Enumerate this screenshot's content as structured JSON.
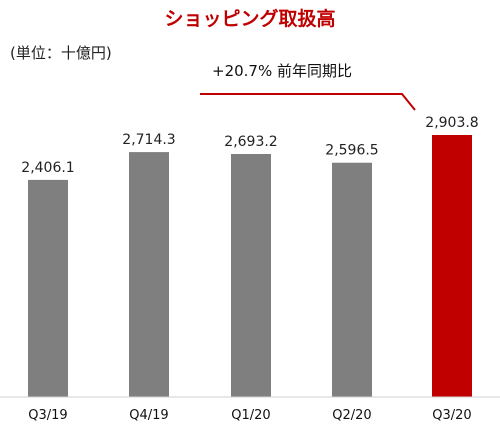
{
  "chart_data": {
    "type": "bar",
    "title": "ショッピング取扱高",
    "unit_label": "(単位：十億円)",
    "categories": [
      "Q3/19",
      "Q4/19",
      "Q1/20",
      "Q2/20",
      "Q3/20"
    ],
    "values": [
      2406.1,
      2714.3,
      2693.2,
      2596.5,
      2903.8
    ],
    "value_labels": [
      "2,406.1",
      "2,714.3",
      "2,693.2",
      "2,596.5",
      "2,903.8"
    ],
    "highlight_index": 4,
    "annotation": "+20.7% 前年同期比",
    "colors": {
      "bar": "#7f7f7f",
      "highlight": "#c00000",
      "title": "#c00000",
      "annotation_line": "#c00000"
    },
    "xlabel": "",
    "ylabel": ""
  }
}
